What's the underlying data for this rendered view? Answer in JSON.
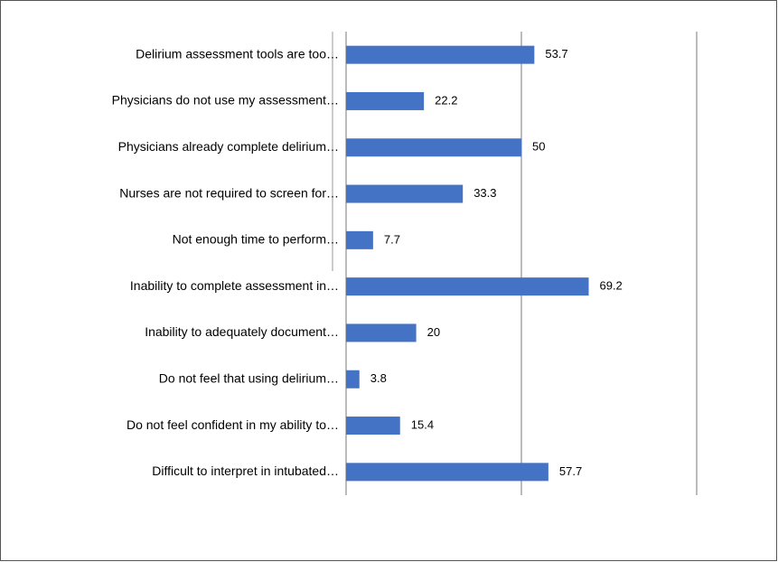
{
  "chart_data": {
    "type": "barh",
    "categories": [
      "Delirium assessment tools are too…",
      "Physicians do not use my assessment…",
      "Physicians already complete delirium…",
      "Nurses are not required to screen for…",
      "Not enough time to perform…",
      "Inability to complete assessment in…",
      "Inability to adequately document…",
      "Do not feel that using delirium…",
      "Do not feel confident in my ability to…",
      "Difficult to interpret in intubated…"
    ],
    "values": [
      53.7,
      22.2,
      50,
      33.3,
      7.7,
      69.2,
      20,
      3.8,
      15.4,
      57.7
    ],
    "color": "#4472c4",
    "xlim": [
      0,
      100
    ],
    "xticks": [
      0,
      50,
      100
    ],
    "grid": true
  }
}
